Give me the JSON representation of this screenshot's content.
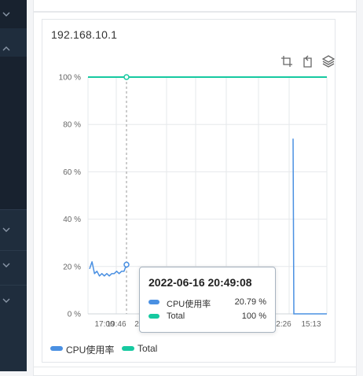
{
  "panel": {
    "title": "192.168.10.1"
  },
  "toolbar": {
    "icons": [
      "zoom-select-icon",
      "zoom-reset-icon",
      "layers-icon"
    ]
  },
  "colors": {
    "cpu": "#4a90e2",
    "total": "#16c9a0",
    "sidebar": "#1f2d3d"
  },
  "chart_data": {
    "type": "line",
    "y_ticks": [
      "100 %",
      "80 %",
      "60 %",
      "40 %",
      "20 %",
      "0 %"
    ],
    "x_ticks_visible": [
      "17:00",
      "19:46",
      "2",
      "2:26",
      "15:13"
    ],
    "ylim": [
      0,
      100
    ],
    "grid": true,
    "legend_position": "bottom-left",
    "series": [
      {
        "name": "CPU使用率",
        "color": "#4a90e2",
        "values": [
          19,
          22,
          17,
          18,
          16,
          17,
          16,
          17,
          16,
          17,
          17,
          18,
          17,
          18,
          18,
          20.79
        ]
      },
      {
        "name": "Total",
        "color": "#16c9a0",
        "values": [
          100
        ]
      }
    ],
    "cpu_spike_values": [
      74,
      0,
      0,
      0,
      0,
      0,
      0
    ]
  },
  "tooltip": {
    "title": "2022-06-16 20:49:08",
    "rows": [
      {
        "name": "CPU使用率",
        "value": "20.79 %",
        "color": "#4a90e2"
      },
      {
        "name": "Total",
        "value": "100 %",
        "color": "#16c9a0"
      }
    ]
  },
  "legend": [
    {
      "name": "CPU使用率",
      "color": "#4a90e2"
    },
    {
      "name": "Total",
      "color": "#16c9a0"
    }
  ]
}
